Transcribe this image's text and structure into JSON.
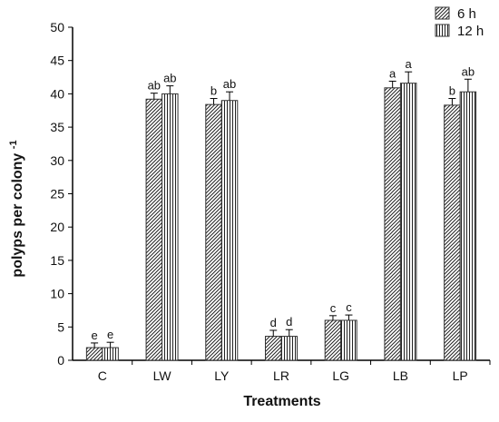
{
  "chart_data": {
    "type": "bar",
    "xlabel": "Treatments",
    "ylabel": "polyps per colony",
    "ylabel_superscript": "-1",
    "ylim": [
      0,
      50
    ],
    "yticks": [
      0,
      5,
      10,
      15,
      20,
      25,
      30,
      35,
      40,
      45,
      50
    ],
    "categories": [
      "C",
      "LW",
      "LY",
      "LR",
      "LG",
      "LB",
      "LP"
    ],
    "grid": false,
    "legend_position": "top-right",
    "series": [
      {
        "name": "6 h",
        "pattern": "diagonal-hatch",
        "values": [
          1.9,
          39.2,
          38.4,
          3.6,
          6.0,
          40.9,
          38.3
        ],
        "errors": [
          0.7,
          0.9,
          0.9,
          0.9,
          0.7,
          1.0,
          1.0
        ],
        "labels": [
          "e",
          "ab",
          "b",
          "d",
          "c",
          "a",
          "b"
        ]
      },
      {
        "name": "12 h",
        "pattern": "vertical-lines",
        "values": [
          1.9,
          40.0,
          39.0,
          3.6,
          6.0,
          41.6,
          40.3
        ],
        "errors": [
          0.8,
          1.2,
          1.3,
          1.0,
          0.8,
          1.7,
          1.9
        ],
        "labels": [
          "e",
          "ab",
          "ab",
          "d",
          "c",
          "a",
          "ab"
        ]
      }
    ]
  }
}
